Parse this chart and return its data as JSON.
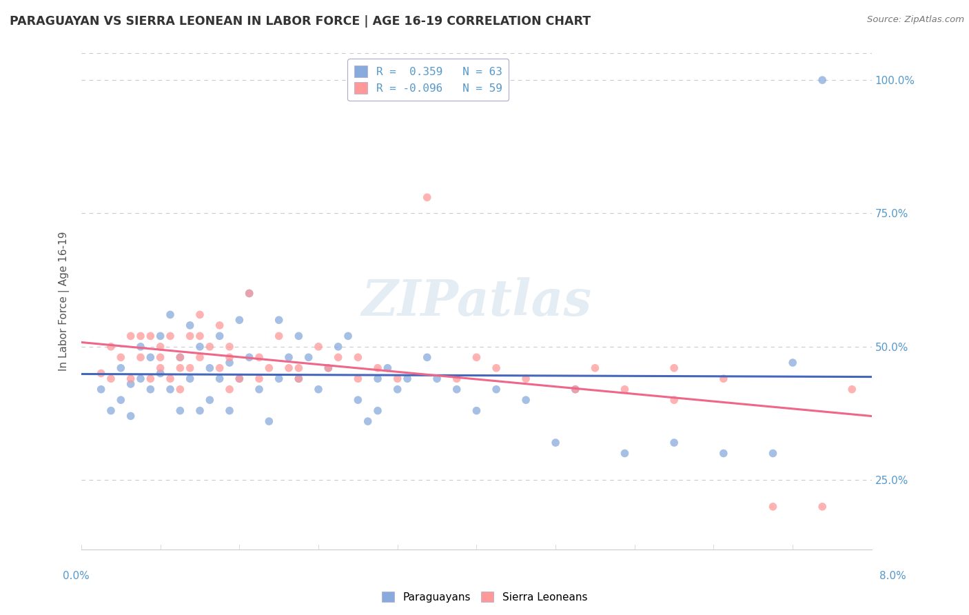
{
  "title": "PARAGUAYAN VS SIERRA LEONEAN IN LABOR FORCE | AGE 16-19 CORRELATION CHART",
  "source": "Source: ZipAtlas.com",
  "ylabel_label": "In Labor Force | Age 16-19",
  "xlim": [
    0.0,
    8.0
  ],
  "ylim": [
    12.0,
    105.0
  ],
  "y_ticks": [
    25,
    50,
    75,
    100
  ],
  "y_tick_labels": [
    "25.0%",
    "50.0%",
    "75.0%",
    "100.0%"
  ],
  "legend_r1": "R =  0.359   N = 63",
  "legend_r2": "R = -0.096   N = 59",
  "watermark": "ZIPatlas",
  "blue_color": "#88AADD",
  "pink_color": "#FF9999",
  "blue_line_color": "#4466BB",
  "pink_line_color": "#EE6688",
  "paraguayan_x": [
    0.2,
    0.3,
    0.4,
    0.4,
    0.5,
    0.5,
    0.6,
    0.6,
    0.7,
    0.7,
    0.8,
    0.8,
    0.9,
    0.9,
    1.0,
    1.0,
    1.1,
    1.1,
    1.2,
    1.2,
    1.3,
    1.3,
    1.4,
    1.4,
    1.5,
    1.5,
    1.6,
    1.6,
    1.7,
    1.7,
    1.8,
    1.9,
    2.0,
    2.0,
    2.1,
    2.2,
    2.2,
    2.3,
    2.4,
    2.5,
    2.6,
    2.7,
    2.8,
    2.9,
    3.0,
    3.0,
    3.1,
    3.2,
    3.3,
    3.5,
    3.6,
    3.8,
    4.0,
    4.2,
    4.5,
    4.8,
    5.0,
    5.5,
    6.0,
    6.5,
    7.0,
    7.2,
    7.5
  ],
  "paraguayan_y": [
    42,
    38,
    46,
    40,
    43,
    37,
    50,
    44,
    48,
    42,
    52,
    45,
    56,
    42,
    48,
    38,
    54,
    44,
    50,
    38,
    46,
    40,
    52,
    44,
    47,
    38,
    55,
    44,
    60,
    48,
    42,
    36,
    55,
    44,
    48,
    52,
    44,
    48,
    42,
    46,
    50,
    52,
    40,
    36,
    44,
    38,
    46,
    42,
    44,
    48,
    44,
    42,
    38,
    42,
    40,
    32,
    42,
    30,
    32,
    30,
    30,
    47,
    100
  ],
  "sierraleonean_x": [
    0.2,
    0.3,
    0.4,
    0.5,
    0.5,
    0.6,
    0.7,
    0.7,
    0.8,
    0.8,
    0.9,
    0.9,
    1.0,
    1.0,
    1.1,
    1.1,
    1.2,
    1.2,
    1.3,
    1.4,
    1.4,
    1.5,
    1.5,
    1.6,
    1.7,
    1.8,
    1.9,
    2.0,
    2.1,
    2.2,
    2.4,
    2.5,
    2.6,
    2.8,
    3.0,
    3.2,
    3.5,
    3.8,
    4.0,
    4.2,
    4.5,
    5.0,
    5.2,
    5.5,
    6.0,
    6.0,
    6.5,
    7.0,
    7.5,
    7.8,
    0.3,
    0.6,
    0.8,
    1.0,
    1.2,
    1.5,
    1.8,
    2.2,
    2.8
  ],
  "sierraleonean_y": [
    45,
    50,
    48,
    52,
    44,
    48,
    52,
    44,
    50,
    46,
    52,
    44,
    48,
    42,
    52,
    46,
    56,
    48,
    50,
    54,
    46,
    48,
    42,
    44,
    60,
    48,
    46,
    52,
    46,
    44,
    50,
    46,
    48,
    44,
    46,
    44,
    78,
    44,
    48,
    46,
    44,
    42,
    46,
    42,
    46,
    40,
    44,
    20,
    20,
    42,
    44,
    52,
    48,
    46,
    52,
    50,
    44,
    46,
    48
  ]
}
